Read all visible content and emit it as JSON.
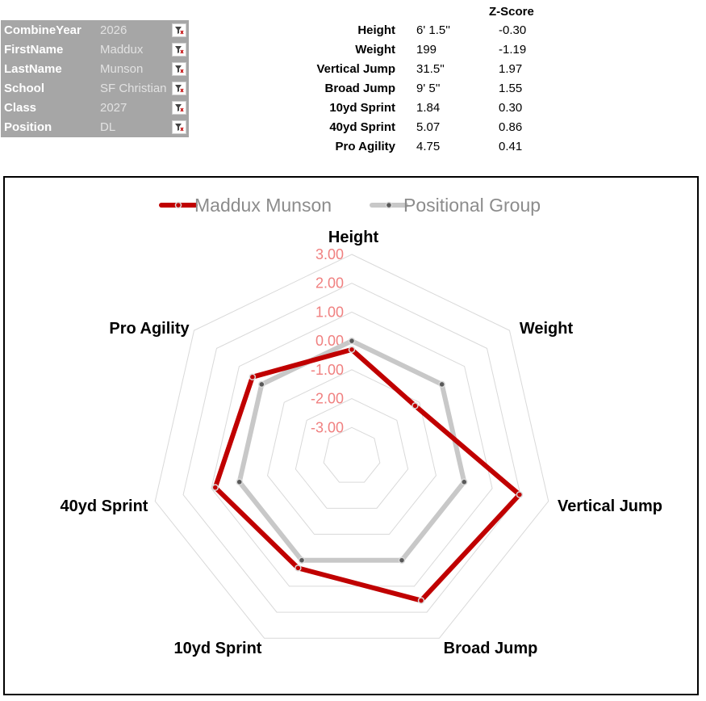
{
  "filters": [
    {
      "label": "CombineYear",
      "value": "2026"
    },
    {
      "label": "FirstName",
      "value": "Maddux"
    },
    {
      "label": "LastName",
      "value": "Munson"
    },
    {
      "label": "School",
      "value": "SF Christian"
    },
    {
      "label": "Class",
      "value": "2027"
    },
    {
      "label": "Position",
      "value": "DL"
    }
  ],
  "stats": {
    "zscore_header": "Z-Score",
    "rows": [
      {
        "name": "Height",
        "value": "6' 1.5''",
        "z": "-0.30"
      },
      {
        "name": "Weight",
        "value": "199",
        "z": "-1.19"
      },
      {
        "name": "Vertical Jump",
        "value": "31.5''",
        "z": "1.97"
      },
      {
        "name": "Broad Jump",
        "value": "9' 5''",
        "z": "1.55"
      },
      {
        "name": "10yd Sprint",
        "value": "1.84",
        "z": "0.30"
      },
      {
        "name": "40yd Sprint",
        "value": "5.07",
        "z": "0.86"
      },
      {
        "name": "Pro Agility",
        "value": "4.75",
        "z": "0.41"
      }
    ]
  },
  "chart_data": {
    "type": "radar",
    "categories": [
      "Height",
      "Weight",
      "Vertical Jump",
      "Broad Jump",
      "10yd Sprint",
      "40yd Sprint",
      "Pro Agility"
    ],
    "rlim": [
      -4,
      3
    ],
    "ticks": [
      "3.00",
      "2.00",
      "1.00",
      "0.00",
      "-1.00",
      "-2.00",
      "-3.00"
    ],
    "tick_values": [
      3,
      2,
      1,
      0,
      -1,
      -2,
      -3
    ],
    "grid": true,
    "legend_position": "top",
    "series": [
      {
        "name": "Maddux  Munson",
        "color": "#c00000",
        "values": [
          -0.3,
          -1.19,
          1.97,
          1.55,
          0.3,
          0.86,
          0.41
        ]
      },
      {
        "name": "Positional Group",
        "color": "#c8c8c8",
        "values": [
          0,
          0,
          0,
          0,
          0,
          0,
          0
        ]
      }
    ]
  },
  "icons": {
    "filter": "filter-clear-icon"
  }
}
